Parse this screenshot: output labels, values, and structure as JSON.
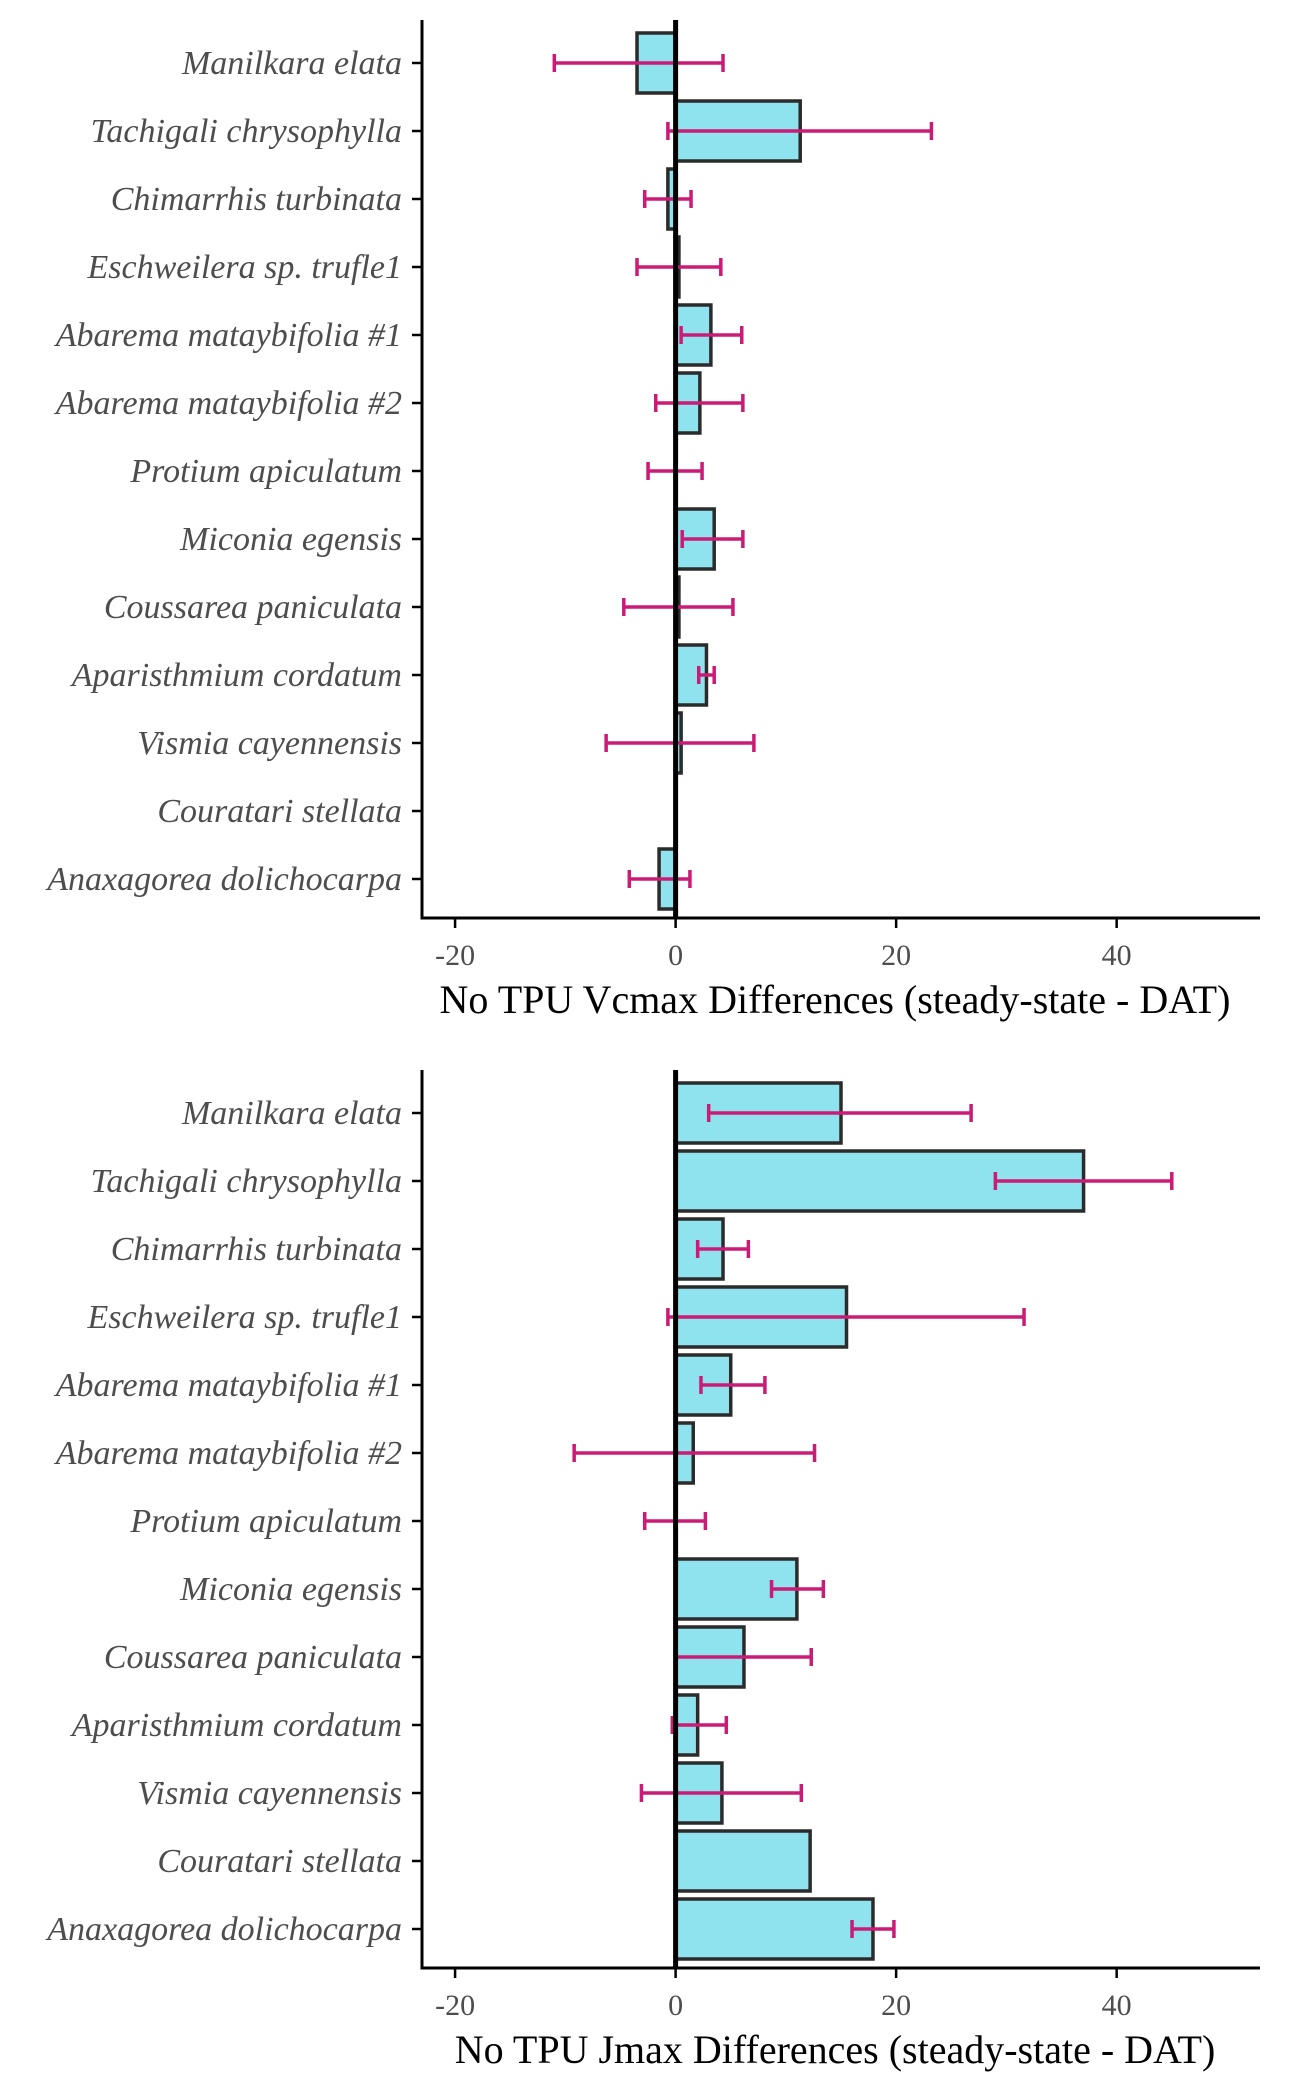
{
  "colors": {
    "bar_fill": "#8fe3ee",
    "bar_stroke": "#2b2b2b",
    "error_bar": "#cc1a77",
    "axis": "#000000",
    "zero_line": "#000000",
    "label_text": "#4d4d4d"
  },
  "chart_data": [
    {
      "type": "bar",
      "orientation": "horizontal",
      "title": "",
      "xlabel": "No TPU Vcmax Differences (steady-state - DAT)",
      "ylabel": "",
      "xlim": [
        -23,
        53
      ],
      "xticks": [
        -20,
        0,
        20,
        40
      ],
      "grid": false,
      "categories": [
        "Manilkara elata",
        "Tachigali chrysophylla",
        "Chimarrhis turbinata",
        "Eschweilera sp. trufle1",
        "Abarema mataybifolia #1",
        "Abarema mataybifolia #2",
        "Protium apiculatum",
        "Miconia egensis",
        "Coussarea paniculata",
        "Aparisthmium cordatum",
        "Vismia cayennensis",
        "Couratari stellata",
        "Anaxagorea dolichocarpa"
      ],
      "values": [
        -3.5,
        11.3,
        -0.7,
        0.3,
        3.2,
        2.2,
        0.0,
        3.5,
        0.3,
        2.8,
        0.5,
        null,
        -1.5
      ],
      "error_low": [
        -11.0,
        -0.7,
        -2.8,
        -3.5,
        0.5,
        -1.8,
        -2.5,
        0.6,
        -4.7,
        2.1,
        -6.3,
        null,
        -4.2
      ],
      "error_high": [
        4.3,
        23.2,
        1.4,
        4.1,
        6.0,
        6.1,
        2.4,
        6.1,
        5.2,
        3.5,
        7.1,
        null,
        1.3
      ]
    },
    {
      "type": "bar",
      "orientation": "horizontal",
      "title": "",
      "xlabel": "No TPU Jmax Differences (steady-state - DAT)",
      "ylabel": "",
      "xlim": [
        -23,
        53
      ],
      "xticks": [
        -20,
        0,
        20,
        40
      ],
      "grid": false,
      "categories": [
        "Manilkara elata",
        "Tachigali chrysophylla",
        "Chimarrhis turbinata",
        "Eschweilera sp. trufle1",
        "Abarema mataybifolia #1",
        "Abarema mataybifolia #2",
        "Protium apiculatum",
        "Miconia egensis",
        "Coussarea paniculata",
        "Aparisthmium cordatum",
        "Vismia cayennensis",
        "Couratari stellata",
        "Anaxagorea dolichocarpa"
      ],
      "values": [
        15.0,
        37.0,
        4.3,
        15.5,
        5.0,
        1.6,
        0.0,
        11.0,
        6.2,
        2.0,
        4.2,
        12.2,
        17.9
      ],
      "error_low": [
        3.0,
        29.0,
        2.0,
        -0.7,
        2.3,
        -9.2,
        -2.8,
        8.7,
        0.0,
        -0.3,
        -3.1,
        null,
        16.0
      ],
      "error_high": [
        26.8,
        45.0,
        6.6,
        31.6,
        8.1,
        12.6,
        2.7,
        13.4,
        12.3,
        4.6,
        11.4,
        null,
        19.8
      ]
    }
  ]
}
